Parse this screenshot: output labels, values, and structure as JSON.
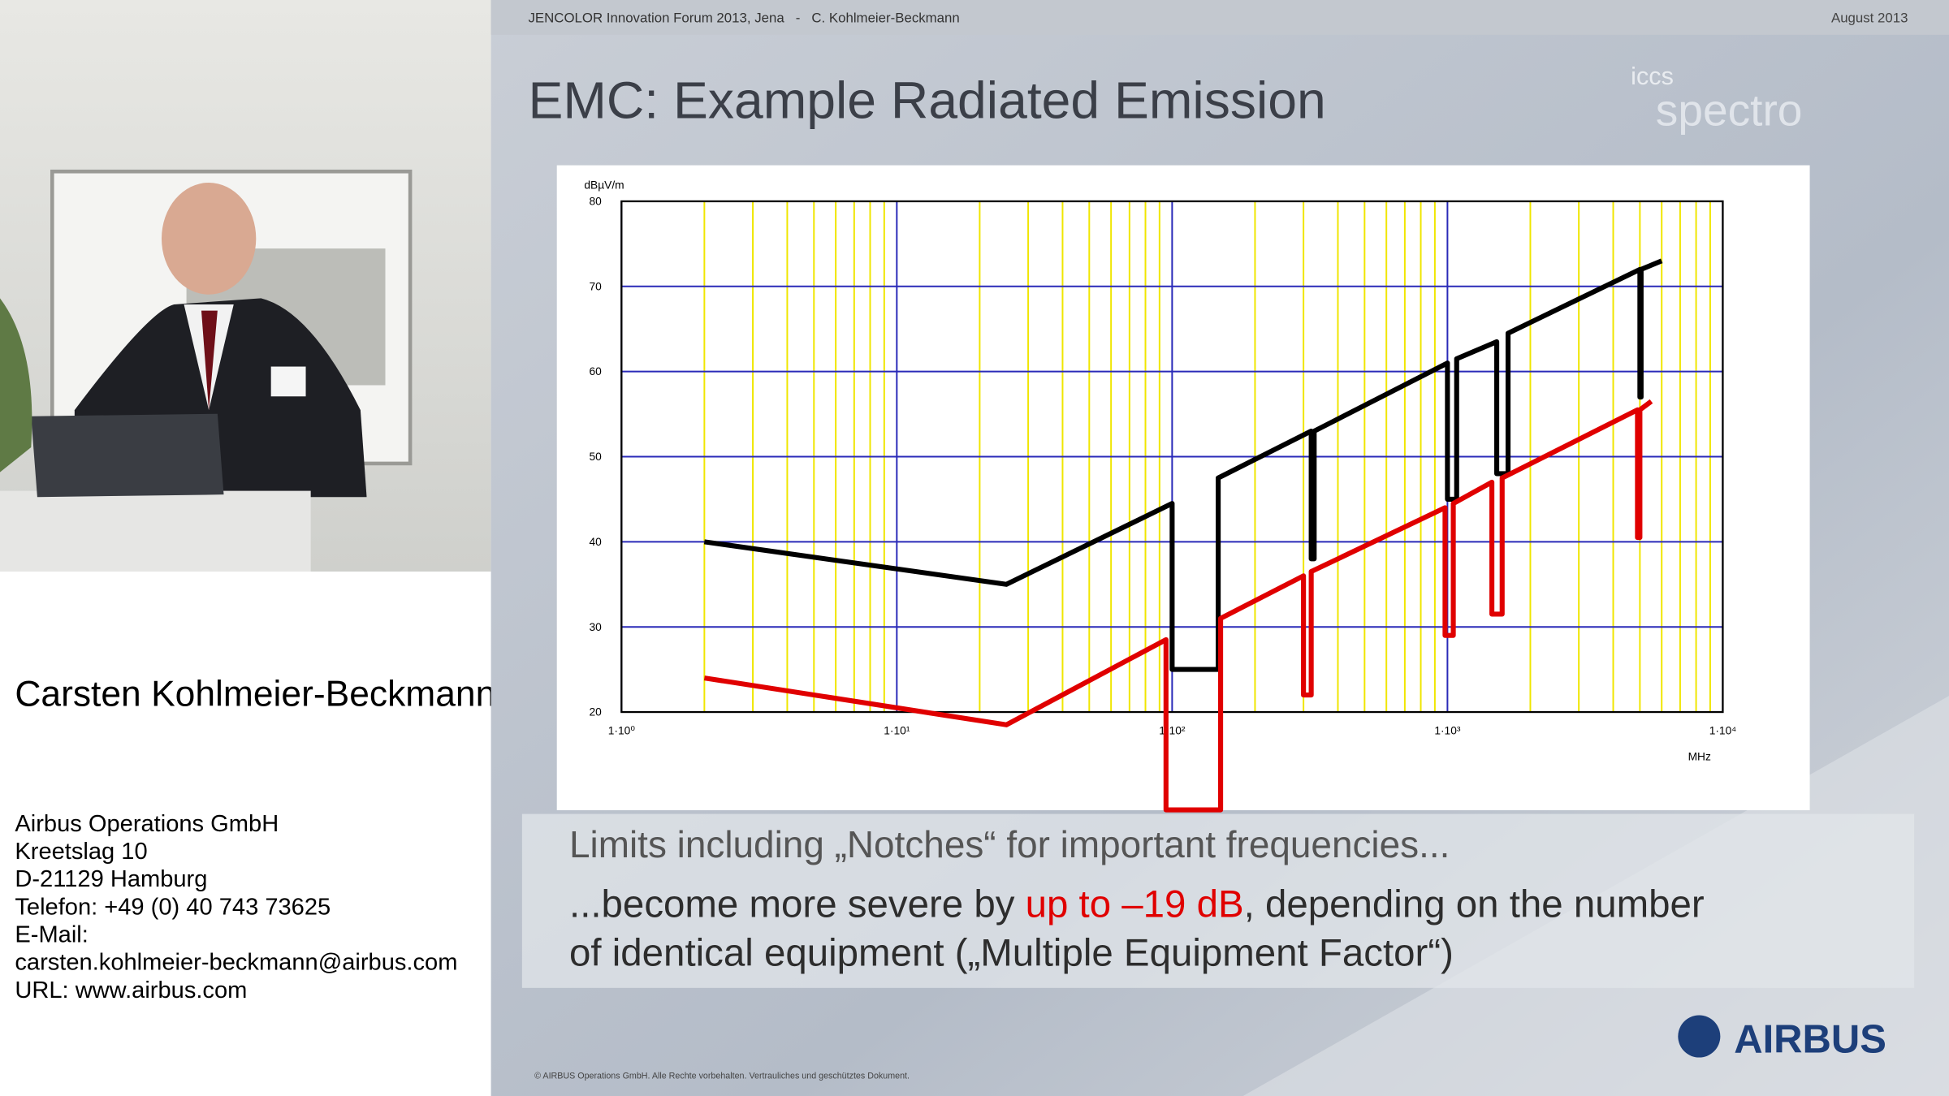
{
  "sidebar": {
    "name": "Carsten Kohlmeier-Beckmann",
    "contact": [
      "Airbus Operations GmbH",
      "Kreetslag 10",
      "D-21129 Hamburg",
      "Telefon: +49 (0) 40 743 73625",
      "E-Mail:",
      "carsten.kohlmeier-beckmann@airbus.com",
      "URL: www.airbus.com"
    ]
  },
  "slide": {
    "header_left": "JENCOLOR Innovation Forum 2013, Jena   -   C. Kohlmeier-Beckmann",
    "header_right": "August 2013",
    "title": "EMC: Example Radiated Emission",
    "logo": [
      "iccs",
      "spectro"
    ],
    "chart": {
      "type": "line",
      "y_label": "dBµV/m",
      "x_label": "MHz",
      "log_x": true,
      "xlim": [
        1,
        10000
      ],
      "ylim": [
        20,
        80
      ],
      "xticks": [
        {
          "value": 1,
          "label": "1·10⁰"
        },
        {
          "value": 10,
          "label": "1·10¹"
        },
        {
          "value": 100,
          "label": "1·10²"
        },
        {
          "value": 1000,
          "label": "1·10³"
        },
        {
          "value": 10000,
          "label": "1·10⁴"
        }
      ],
      "yticks": [
        20,
        30,
        40,
        50,
        60,
        70,
        80
      ],
      "xminorticks": [
        2,
        3,
        4,
        5,
        6,
        7,
        8,
        9,
        20,
        30,
        40,
        50,
        60,
        70,
        80,
        90,
        200,
        300,
        400,
        500,
        600,
        700,
        800,
        900,
        2000,
        3000,
        4000,
        5000,
        6000,
        7000,
        8000,
        9000
      ],
      "grid_color": "#2a2ab8",
      "minor_grid_color": "#f0e600",
      "series": [
        {
          "color": "#000000",
          "x": [
            2,
            25,
            100,
            100,
            147,
            147,
            320,
            320,
            328,
            328,
            1000,
            1000,
            1080,
            1080,
            1510,
            1510,
            1660,
            1660,
            5000,
            5000,
            5050,
            5050,
            6000
          ],
          "values": [
            40,
            35,
            44.5,
            25,
            25,
            47.5,
            53,
            38,
            38,
            53,
            61,
            45,
            45,
            61.5,
            63.5,
            48,
            48,
            64.5,
            72,
            57,
            57,
            72,
            73
          ]
        },
        {
          "color": "#e00000",
          "x": [
            2,
            25,
            95,
            95,
            150,
            150,
            300,
            300,
            320,
            320,
            980,
            980,
            1050,
            1050,
            1450,
            1450,
            1580,
            1580,
            4900,
            4900,
            5000,
            5000,
            5500
          ],
          "values": [
            24,
            18.5,
            28.5,
            8.5,
            8.5,
            31,
            36,
            22,
            22,
            36.5,
            44,
            29,
            29,
            44.5,
            47,
            31.5,
            31.5,
            47.5,
            55.5,
            40.5,
            40.5,
            55.5,
            56.5
          ]
        }
      ]
    },
    "text": {
      "line1": "Limits including „Notches“ for important frequencies...",
      "line2_a": "...become more severe by ",
      "line2_b": "up to –19 dB",
      "line2_c": ", depending on the number",
      "line3": "of identical equipment („Multiple Equipment Factor“)"
    },
    "footer": "© AIRBUS Operations GmbH. Alle Rechte vorbehalten. Vertrauliches und geschütztes Dokument.",
    "brand": "AIRBUS"
  }
}
